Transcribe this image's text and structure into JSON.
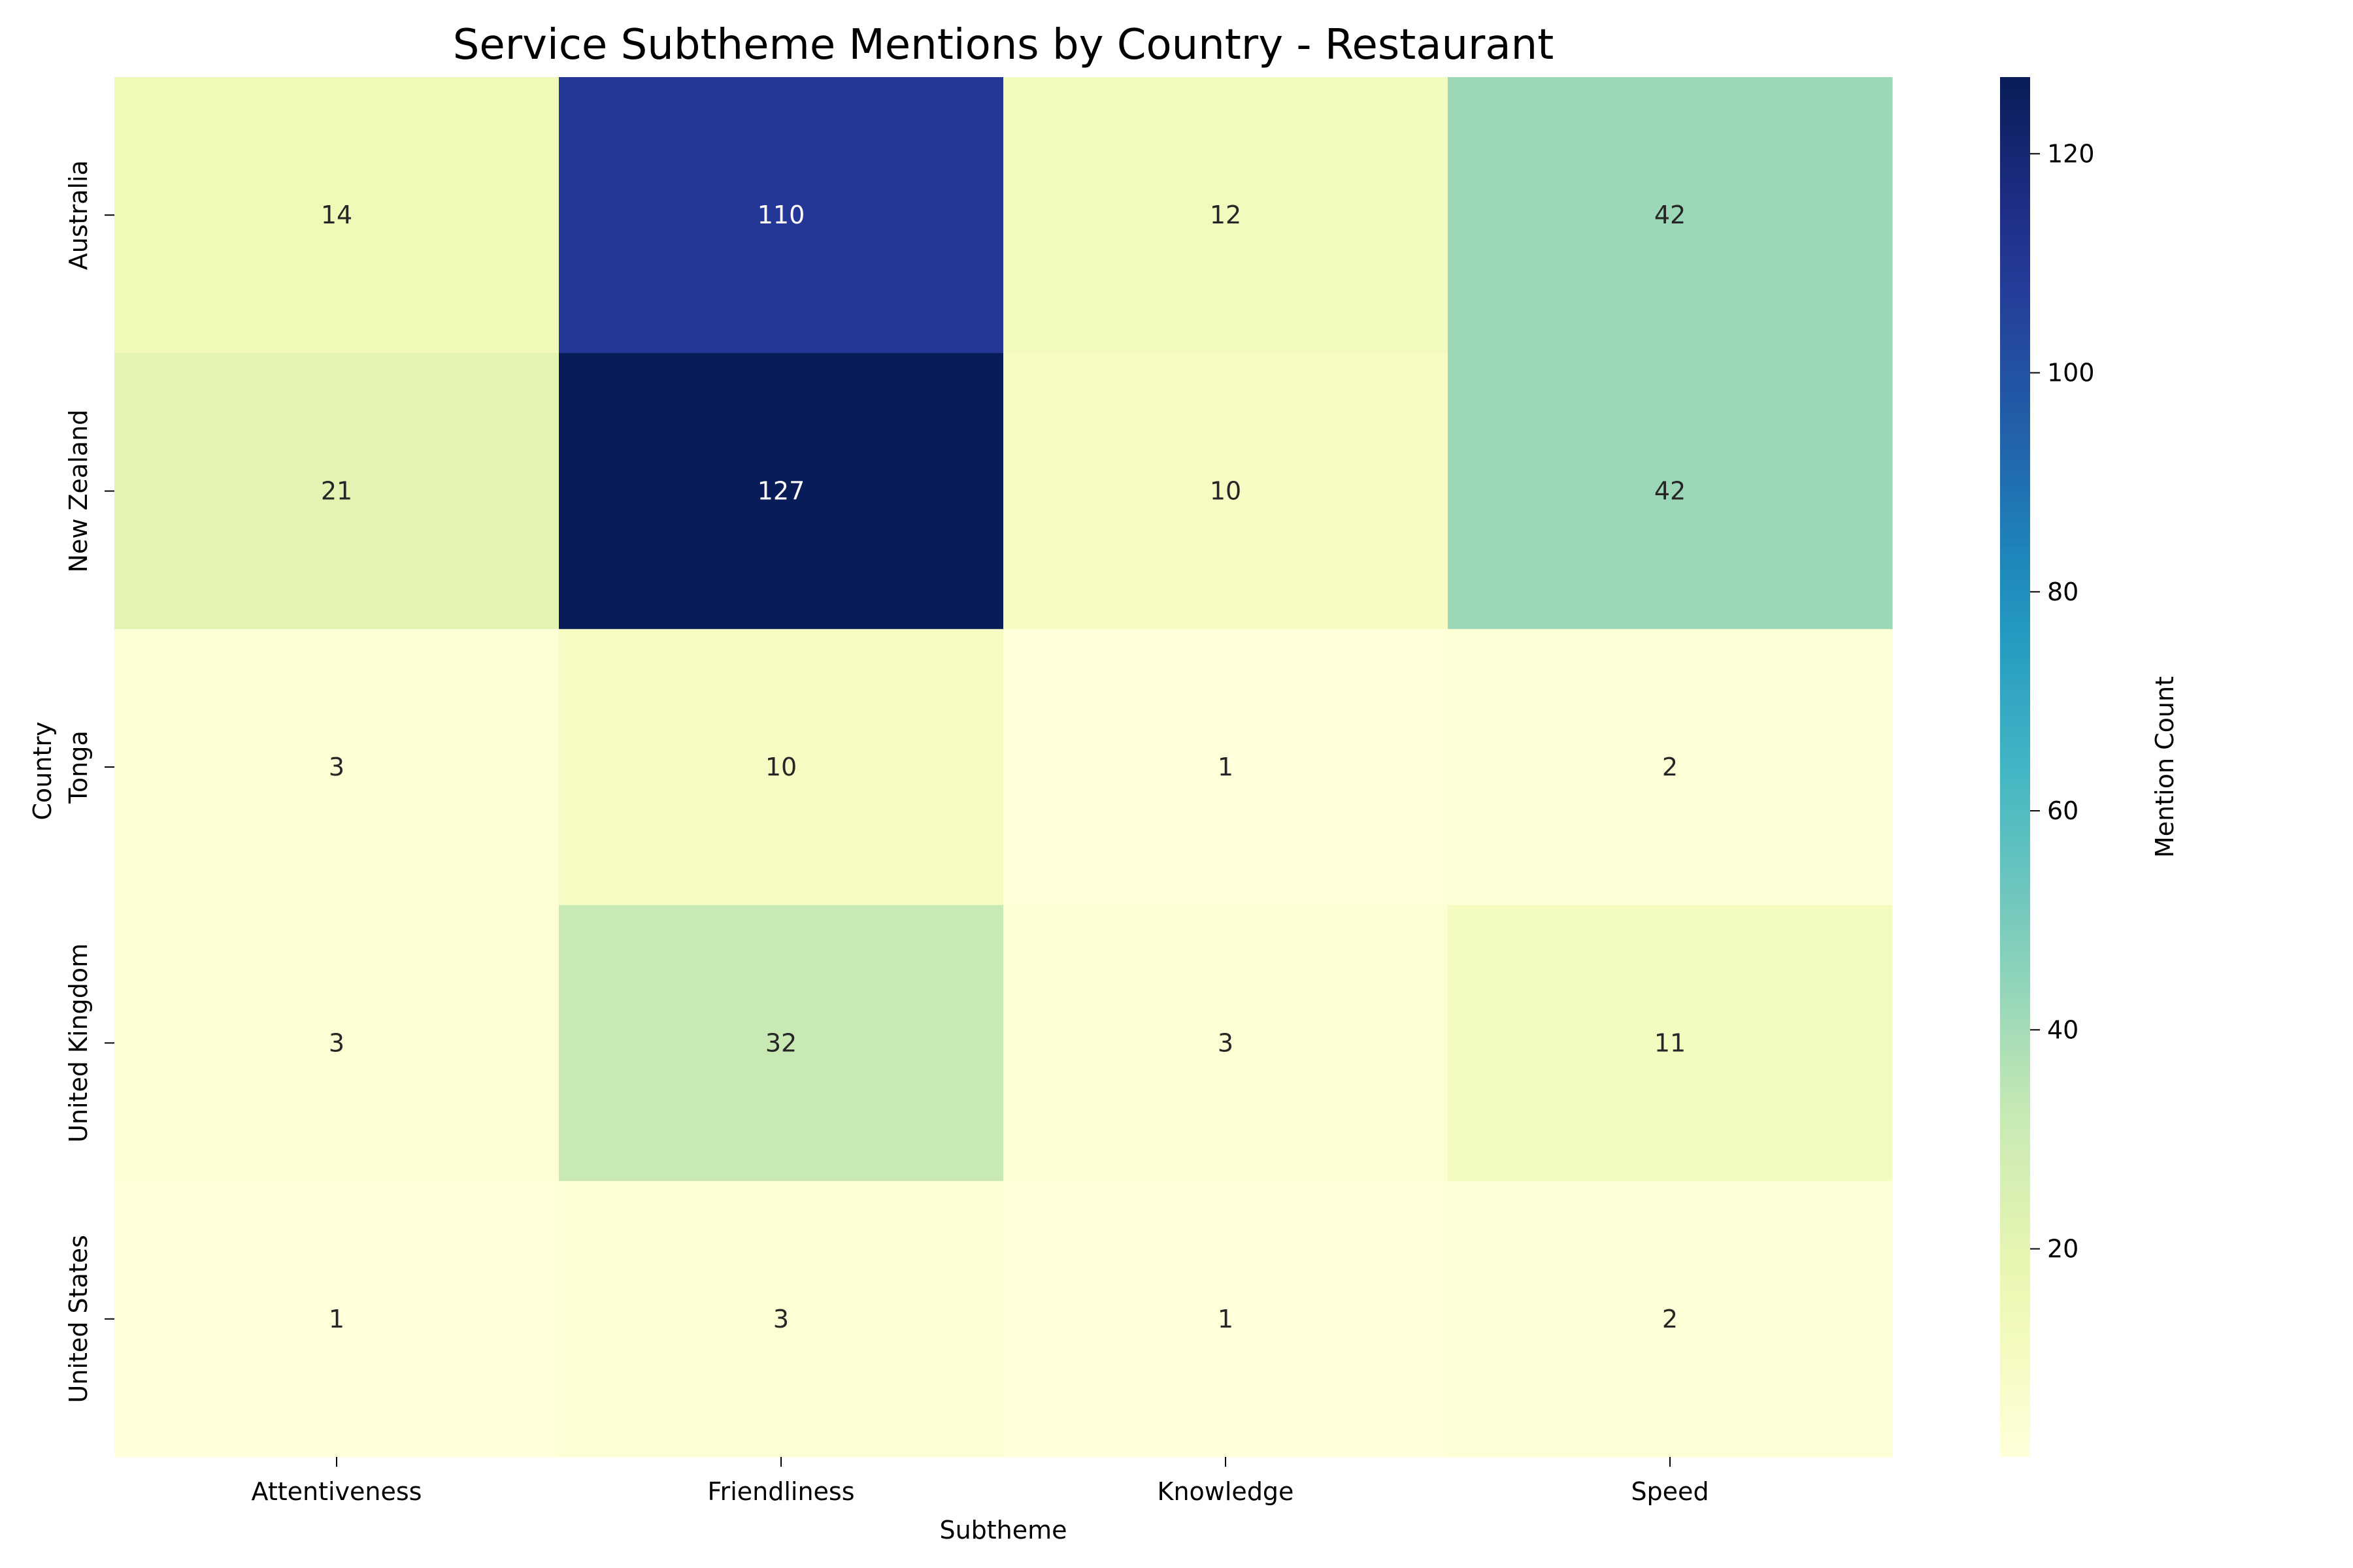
{
  "chart_data": {
    "type": "heatmap",
    "title": "Service Subtheme Mentions by Country - Restaurant",
    "xlabel": "Subtheme",
    "ylabel": "Country",
    "x_categories": [
      "Attentiveness",
      "Friendliness",
      "Knowledge",
      "Speed"
    ],
    "y_categories": [
      "Australia",
      "New Zealand",
      "Tonga",
      "United Kingdom",
      "United States"
    ],
    "values": [
      [
        14,
        110,
        12,
        42
      ],
      [
        21,
        127,
        10,
        42
      ],
      [
        3,
        10,
        1,
        2
      ],
      [
        3,
        32,
        3,
        11
      ],
      [
        1,
        3,
        1,
        2
      ]
    ],
    "colorbar": {
      "label": "Mention Count",
      "range": [
        1,
        127
      ],
      "ticks": [
        20,
        40,
        60,
        80,
        100,
        120
      ],
      "colormap": "YlGnBu"
    },
    "grid": false,
    "legend": "right"
  }
}
